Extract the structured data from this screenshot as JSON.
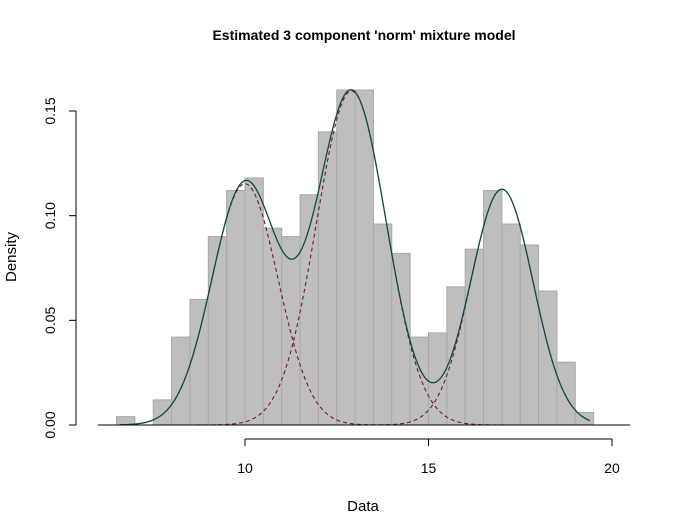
{
  "chart_data": {
    "type": "bar",
    "title": "Estimated 3 component 'norm' mixture model",
    "xlabel": "Data",
    "ylabel": "Density",
    "xlim": [
      5.5,
      20.5
    ],
    "ylim": [
      0,
      0.16
    ],
    "x_ticks": [
      "10",
      "15",
      "20"
    ],
    "y_ticks": [
      "0.00",
      "0.05",
      "0.10",
      "0.15"
    ],
    "histogram": {
      "bin_width": 0.5,
      "bin_start": 6.5,
      "densities": [
        0.004,
        0.0,
        0.012,
        0.042,
        0.06,
        0.09,
        0.112,
        0.118,
        0.094,
        0.09,
        0.11,
        0.14,
        0.16,
        0.16,
        0.096,
        0.082,
        0.042,
        0.044,
        0.066,
        0.084,
        0.112,
        0.096,
        0.086,
        0.064,
        0.03,
        0.006
      ],
      "color": "#bebebe"
    },
    "components": [
      {
        "mean": 10.0,
        "sd": 0.9,
        "weight": 0.26
      },
      {
        "mean": 12.9,
        "sd": 0.95,
        "weight": 0.38
      },
      {
        "mean": 17.0,
        "sd": 0.85,
        "weight": 0.24
      }
    ],
    "component_line_color": "#6b1a3a",
    "mixture_line_color": "#0e4a4a",
    "grid": false,
    "legend": "none"
  }
}
